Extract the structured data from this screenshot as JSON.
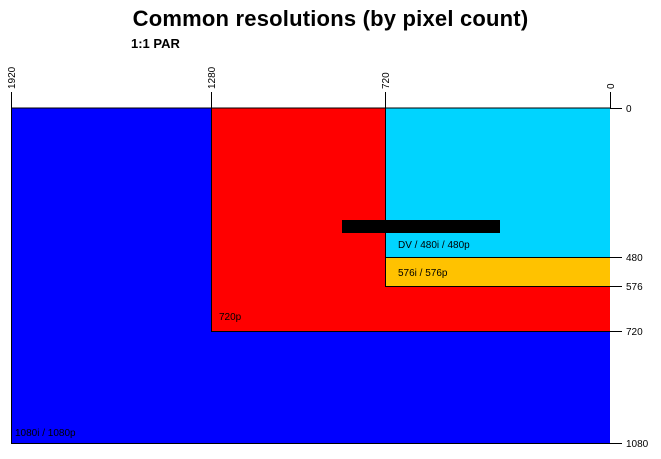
{
  "title": "Common resolutions (by pixel count)",
  "subtitle": "1:1 PAR",
  "x_ticks": [
    "1920",
    "1280",
    "720",
    "0"
  ],
  "y_ticks": [
    "0",
    "480",
    "576",
    "720",
    "1080"
  ],
  "regions": [
    {
      "label": "1080i / 1080p",
      "width": 1920,
      "height": 1080,
      "color": "#0000ff"
    },
    {
      "label": "720p",
      "width": 1280,
      "height": 720,
      "color": "#ff0000"
    },
    {
      "label": "576i / 576p",
      "width": 720,
      "height": 576,
      "color": "#ffc200"
    },
    {
      "label": "DV / 480i / 480p",
      "width": 720,
      "height": 480,
      "color": "#00d4ff"
    }
  ],
  "colors": {
    "bar": "#000000",
    "line": "#000000"
  }
}
